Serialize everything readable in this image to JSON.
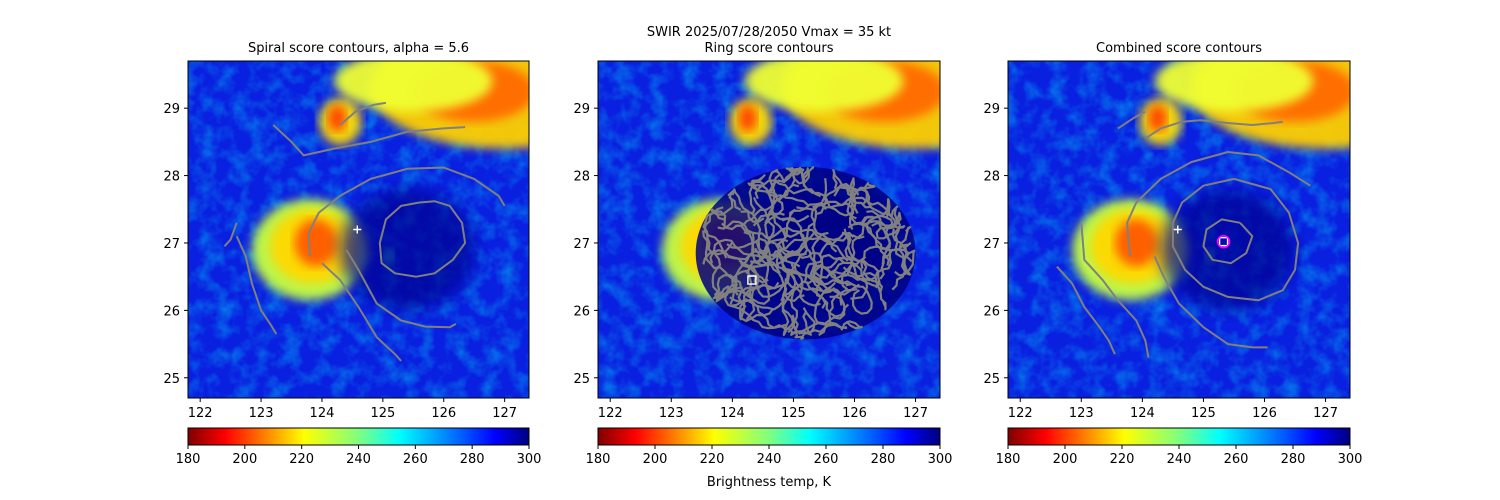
{
  "suptitle": "SWIR  2025/07/28/2050    Vmax = 35 kt",
  "colorbar_label": "Brightness temp, K",
  "colors": {
    "contour": "#808080",
    "marker_white": "#ffffff",
    "marker_magenta": "#ff00ff"
  },
  "chart_data": [
    {
      "type": "heatmap",
      "title": "Spiral score contours, alpha =  5.6",
      "xlim": [
        121.8,
        127.4
      ],
      "ylim": [
        24.7,
        29.7
      ],
      "xticks": [
        "122",
        "123",
        "124",
        "125",
        "126",
        "127"
      ],
      "yticks": [
        "25",
        "26",
        "27",
        "28",
        "29"
      ],
      "colormap": "jet_r",
      "colorbar": {
        "ticks": [
          "180",
          "200",
          "220",
          "240",
          "260",
          "280",
          "300"
        ],
        "range": [
          180,
          300
        ]
      },
      "markers": [
        {
          "symbol": "plus",
          "x": 124.58,
          "y": 27.2,
          "color": "#ffffff"
        }
      ],
      "contours": [
        [
          [
            124.4,
            26.9
          ],
          [
            124.6,
            26.6
          ],
          [
            124.9,
            26.1
          ],
          [
            125.3,
            25.85
          ],
          [
            125.7,
            25.76
          ],
          [
            126.1,
            25.75
          ],
          [
            126.2,
            25.8
          ]
        ],
        [
          [
            124.0,
            26.7
          ],
          [
            124.3,
            26.45
          ],
          [
            124.6,
            26.05
          ],
          [
            124.9,
            25.6
          ],
          [
            125.2,
            25.35
          ],
          [
            125.3,
            25.25
          ]
        ],
        [
          [
            123.8,
            26.8
          ],
          [
            123.78,
            27.15
          ],
          [
            123.95,
            27.45
          ],
          [
            124.3,
            27.7
          ],
          [
            124.8,
            27.95
          ],
          [
            125.4,
            28.1
          ],
          [
            126.0,
            28.12
          ],
          [
            126.5,
            27.95
          ],
          [
            126.9,
            27.7
          ],
          [
            127.0,
            27.55
          ]
        ],
        [
          [
            123.2,
            28.75
          ],
          [
            123.5,
            28.5
          ],
          [
            123.7,
            28.3
          ],
          [
            124.2,
            28.4
          ],
          [
            124.8,
            28.5
          ],
          [
            125.4,
            28.65
          ],
          [
            126.0,
            28.7
          ],
          [
            126.35,
            28.72
          ]
        ],
        [
          [
            122.6,
            27.1
          ],
          [
            122.75,
            26.8
          ],
          [
            122.85,
            26.4
          ],
          [
            123.0,
            26.0
          ],
          [
            123.15,
            25.8
          ],
          [
            123.25,
            25.65
          ]
        ],
        [
          [
            122.6,
            27.3
          ],
          [
            122.5,
            27.05
          ],
          [
            122.4,
            26.95
          ]
        ],
        [
          [
            124.3,
            28.75
          ],
          [
            124.55,
            28.95
          ],
          [
            124.85,
            29.05
          ],
          [
            125.05,
            29.08
          ]
        ],
        [
          [
            125.6,
            27.6
          ],
          [
            125.3,
            27.55
          ],
          [
            125.05,
            27.35
          ],
          [
            124.95,
            27.0
          ],
          [
            124.98,
            26.7
          ],
          [
            125.2,
            26.55
          ],
          [
            125.55,
            26.5
          ],
          [
            125.85,
            26.55
          ],
          [
            126.15,
            26.75
          ],
          [
            126.35,
            27.0
          ],
          [
            126.3,
            27.3
          ],
          [
            126.1,
            27.55
          ],
          [
            125.85,
            27.62
          ],
          [
            125.6,
            27.6
          ]
        ]
      ]
    },
    {
      "type": "heatmap",
      "title": "Ring score contours",
      "xlim": [
        121.8,
        127.4
      ],
      "ylim": [
        24.7,
        29.7
      ],
      "xticks": [
        "122",
        "123",
        "124",
        "125",
        "126",
        "127"
      ],
      "yticks": [
        "25",
        "26",
        "27",
        "28",
        "29"
      ],
      "colormap": "jet_r",
      "colorbar": {
        "ticks": [
          "180",
          "200",
          "220",
          "240",
          "260",
          "280",
          "300"
        ],
        "range": [
          180,
          300
        ]
      },
      "markers": [
        {
          "symbol": "square",
          "x": 124.32,
          "y": 26.45,
          "color": "#ffffff"
        }
      ],
      "ring_region": {
        "center": [
          125.2,
          26.85
        ],
        "rx": 1.8,
        "ry": 1.28
      },
      "contours": []
    },
    {
      "type": "heatmap",
      "title": "Combined score contours",
      "xlim": [
        121.8,
        127.4
      ],
      "ylim": [
        24.7,
        29.7
      ],
      "xticks": [
        "122",
        "123",
        "124",
        "125",
        "126",
        "127"
      ],
      "yticks": [
        "25",
        "26",
        "27",
        "28",
        "29"
      ],
      "colormap": "jet_r",
      "colorbar": {
        "ticks": [
          "180",
          "200",
          "220",
          "240",
          "260",
          "280",
          "300"
        ],
        "range": [
          180,
          300
        ]
      },
      "markers": [
        {
          "symbol": "plus",
          "x": 124.58,
          "y": 27.2,
          "color": "#ffffff"
        },
        {
          "symbol": "square",
          "x": 125.33,
          "y": 27.02,
          "color": "#ffffff"
        },
        {
          "symbol": "circle",
          "x": 125.33,
          "y": 27.02,
          "color": "#ff00ff"
        }
      ],
      "contours": [
        [
          [
            125.6,
            27.3
          ],
          [
            125.3,
            27.35
          ],
          [
            125.05,
            27.2
          ],
          [
            125.0,
            26.95
          ],
          [
            125.15,
            26.75
          ],
          [
            125.45,
            26.7
          ],
          [
            125.7,
            26.85
          ],
          [
            125.8,
            27.1
          ],
          [
            125.6,
            27.3
          ]
        ],
        [
          [
            125.5,
            27.95
          ],
          [
            125.0,
            27.85
          ],
          [
            124.65,
            27.6
          ],
          [
            124.5,
            27.3
          ],
          [
            124.5,
            26.95
          ],
          [
            124.7,
            26.6
          ],
          [
            125.0,
            26.35
          ],
          [
            125.4,
            26.2
          ],
          [
            125.9,
            26.15
          ],
          [
            126.3,
            26.3
          ],
          [
            126.5,
            26.6
          ],
          [
            126.55,
            27.0
          ],
          [
            126.4,
            27.45
          ],
          [
            126.1,
            27.8
          ],
          [
            125.5,
            27.95
          ]
        ],
        [
          [
            123.8,
            26.8
          ],
          [
            123.75,
            27.3
          ],
          [
            123.9,
            27.6
          ],
          [
            124.3,
            27.95
          ],
          [
            124.8,
            28.2
          ],
          [
            125.4,
            28.35
          ],
          [
            125.9,
            28.3
          ],
          [
            126.4,
            28.05
          ],
          [
            126.75,
            27.85
          ]
        ],
        [
          [
            124.2,
            26.8
          ],
          [
            124.35,
            26.5
          ],
          [
            124.6,
            26.1
          ],
          [
            125.0,
            25.75
          ],
          [
            125.4,
            25.5
          ],
          [
            125.8,
            25.45
          ],
          [
            126.05,
            25.45
          ]
        ],
        [
          [
            123.0,
            27.3
          ],
          [
            123.05,
            26.75
          ],
          [
            123.35,
            26.45
          ],
          [
            123.6,
            26.15
          ],
          [
            123.9,
            25.85
          ],
          [
            124.05,
            25.55
          ],
          [
            124.1,
            25.3
          ]
        ],
        [
          [
            122.6,
            26.65
          ],
          [
            122.85,
            26.4
          ],
          [
            123.05,
            26.05
          ],
          [
            123.3,
            25.75
          ],
          [
            123.45,
            25.55
          ],
          [
            123.55,
            25.35
          ]
        ],
        [
          [
            124.05,
            28.55
          ],
          [
            124.3,
            28.7
          ],
          [
            124.65,
            28.8
          ],
          [
            124.95,
            28.82
          ],
          [
            125.4,
            28.78
          ],
          [
            125.8,
            28.75
          ],
          [
            126.15,
            28.78
          ],
          [
            126.3,
            28.8
          ]
        ],
        [
          [
            123.6,
            28.7
          ],
          [
            123.85,
            28.85
          ],
          [
            124.05,
            28.95
          ]
        ]
      ]
    }
  ]
}
